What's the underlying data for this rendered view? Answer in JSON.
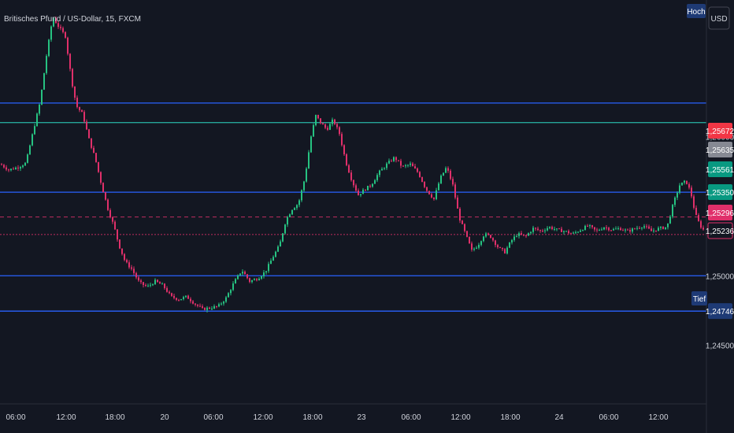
{
  "header": {
    "title": "Britisches Pfund / US-Dollar, 15, FXCM"
  },
  "currency_button": {
    "label": "USD"
  },
  "colors": {
    "background": "#131722",
    "up": "#26c281",
    "down": "#e0306a",
    "level_line": "#2962ff",
    "teal_line": "#26a69a",
    "axis_text": "#d1d4dc"
  },
  "chart_data": {
    "type": "candlestick",
    "title": "Britisches Pfund / US-Dollar, 15, FXCM",
    "ylim": [
      1.2408,
      1.2698
    ],
    "x_ticks": [
      "06:00",
      "12:00",
      "18:00",
      "20",
      "06:00",
      "12:00",
      "18:00",
      "23",
      "06:00",
      "12:00",
      "18:00",
      "24",
      "06:00",
      "12:00"
    ],
    "y_ticks": [
      "1,26000",
      "1,25000",
      "1,24500"
    ],
    "horizontal_levels": [
      {
        "value": 1.2624,
        "color": "#2962ff"
      },
      {
        "value": 1.261,
        "color": "#26a69a"
      },
      {
        "value": 1.256,
        "color": "#2962ff"
      },
      {
        "value": 1.25,
        "color": "#2962ff"
      },
      {
        "value": 1.24746,
        "color": "#2962ff"
      }
    ],
    "dashed_levels": [
      {
        "value": 1.25422,
        "color": "#e0306a"
      },
      {
        "value": 1.25296,
        "color": "#e0306a"
      }
    ],
    "price_tags": [
      {
        "text": "1,25672",
        "value": 1.25672,
        "bg": "#f23645",
        "fg": "#ffffff"
      },
      {
        "text": "1,25635",
        "value": 1.25635,
        "bg": "#868993",
        "fg": "#ffffff"
      },
      {
        "text": "1,25561",
        "value": 1.25561,
        "bg": "#089981",
        "fg": "#ffffff"
      },
      {
        "text": "1,25350",
        "value": 1.2535,
        "bg": "#089981",
        "fg": "#ffffff"
      },
      {
        "text": "1,25296",
        "value": 1.25296,
        "bg": "#e0306a",
        "fg": "#ffffff"
      },
      {
        "text": "1,25236",
        "value": 1.25236,
        "bg": "#131722",
        "fg": "#e0306a"
      }
    ],
    "level_tags": [
      {
        "text": "1,24746",
        "value": 1.24746
      }
    ],
    "badges": {
      "high": "Hoch",
      "low": "Tief"
    },
    "path": [
      [
        0,
        1.258
      ],
      [
        10,
        1.2576
      ],
      [
        22,
        1.2578
      ],
      [
        32,
        1.2581
      ],
      [
        42,
        1.2606
      ],
      [
        50,
        1.2625
      ],
      [
        58,
        1.2658
      ],
      [
        66,
        1.2686
      ],
      [
        72,
        1.268
      ],
      [
        82,
        1.2672
      ],
      [
        90,
        1.264
      ],
      [
        96,
        1.2622
      ],
      [
        104,
        1.2616
      ],
      [
        112,
        1.2598
      ],
      [
        120,
        1.2584
      ],
      [
        128,
        1.2565
      ],
      [
        136,
        1.2548
      ],
      [
        144,
        1.2535
      ],
      [
        150,
        1.2522
      ],
      [
        158,
        1.251
      ],
      [
        166,
        1.2505
      ],
      [
        176,
        1.2495
      ],
      [
        186,
        1.2492
      ],
      [
        196,
        1.2496
      ],
      [
        206,
        1.2493
      ],
      [
        216,
        1.2485
      ],
      [
        226,
        1.2483
      ],
      [
        236,
        1.2485
      ],
      [
        246,
        1.248
      ],
      [
        256,
        1.2476
      ],
      [
        266,
        1.2477
      ],
      [
        276,
        1.2478
      ],
      [
        286,
        1.2484
      ],
      [
        296,
        1.2495
      ],
      [
        306,
        1.2504
      ],
      [
        316,
        1.2496
      ],
      [
        326,
        1.2498
      ],
      [
        336,
        1.2503
      ],
      [
        346,
        1.2514
      ],
      [
        354,
        1.2522
      ],
      [
        362,
        1.254
      ],
      [
        370,
        1.2548
      ],
      [
        378,
        1.2552
      ],
      [
        386,
        1.257
      ],
      [
        394,
        1.26
      ],
      [
        400,
        1.2615
      ],
      [
        406,
        1.261
      ],
      [
        414,
        1.2605
      ],
      [
        422,
        1.2612
      ],
      [
        430,
        1.2602
      ],
      [
        438,
        1.2582
      ],
      [
        446,
        1.2568
      ],
      [
        454,
        1.2558
      ],
      [
        462,
        1.2562
      ],
      [
        470,
        1.2565
      ],
      [
        480,
        1.2574
      ],
      [
        490,
        1.258
      ],
      [
        500,
        1.2585
      ],
      [
        510,
        1.2578
      ],
      [
        520,
        1.258
      ],
      [
        530,
        1.2574
      ],
      [
        540,
        1.2562
      ],
      [
        550,
        1.2555
      ],
      [
        558,
        1.257
      ],
      [
        566,
        1.2578
      ],
      [
        574,
        1.2565
      ],
      [
        582,
        1.2542
      ],
      [
        590,
        1.253
      ],
      [
        598,
        1.2518
      ],
      [
        606,
        1.2522
      ],
      [
        614,
        1.253
      ],
      [
        622,
        1.2528
      ],
      [
        632,
        1.252
      ],
      [
        640,
        1.2517
      ],
      [
        648,
        1.2525
      ],
      [
        656,
        1.253
      ],
      [
        666,
        1.2528
      ],
      [
        676,
        1.2534
      ],
      [
        686,
        1.2532
      ],
      [
        696,
        1.2535
      ],
      [
        706,
        1.2533
      ],
      [
        716,
        1.2532
      ],
      [
        726,
        1.253
      ],
      [
        736,
        1.2533
      ],
      [
        746,
        1.2536
      ],
      [
        756,
        1.2532
      ],
      [
        766,
        1.2535
      ],
      [
        776,
        1.2533
      ],
      [
        786,
        1.2534
      ],
      [
        796,
        1.2532
      ],
      [
        806,
        1.2534
      ],
      [
        816,
        1.2536
      ],
      [
        826,
        1.2532
      ],
      [
        836,
        1.2534
      ],
      [
        846,
        1.2535
      ],
      [
        854,
        1.2552
      ],
      [
        862,
        1.2565
      ],
      [
        870,
        1.2568
      ],
      [
        876,
        1.256
      ],
      [
        882,
        1.2544
      ],
      [
        888,
        1.2536
      ],
      [
        895,
        1.2531
      ]
    ]
  }
}
